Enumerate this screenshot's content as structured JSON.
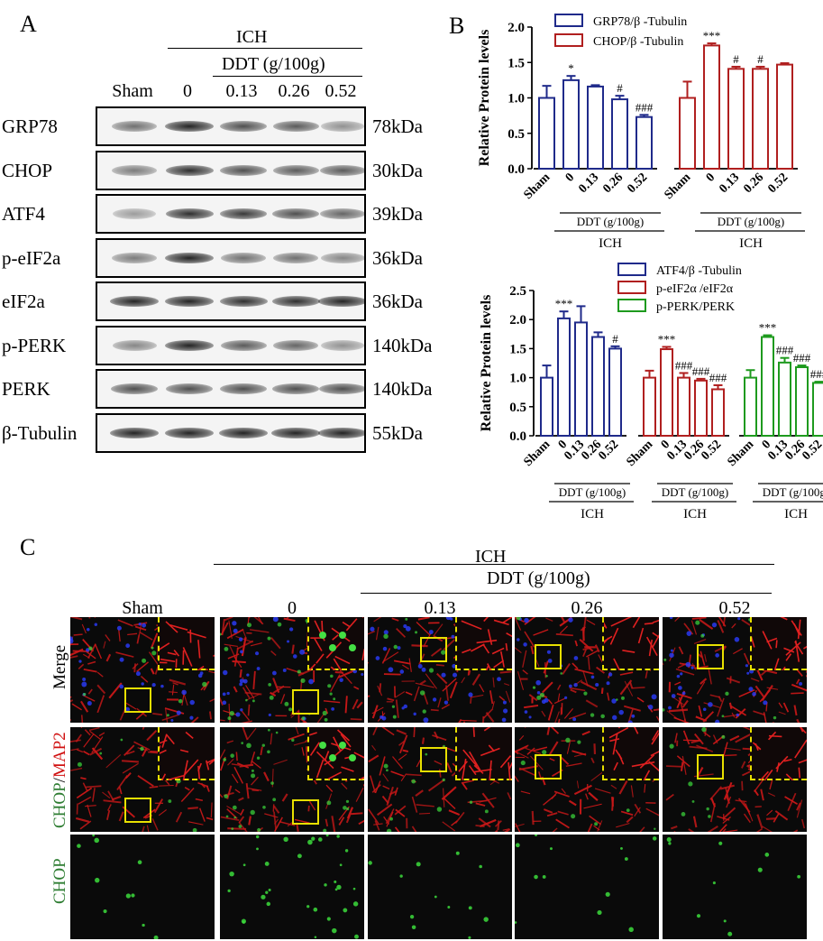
{
  "panels": {
    "a": "A",
    "b": "B",
    "c": "C"
  },
  "blot": {
    "group_label": "ICH",
    "treatment_label": "DDT (g/100g)",
    "lanes": [
      "Sham",
      "0",
      "0.13",
      "0.26",
      "0.52"
    ],
    "rows": [
      {
        "protein": "GRP78",
        "mw": "78kDa",
        "intensities": [
          0.6,
          0.95,
          0.75,
          0.7,
          0.45
        ]
      },
      {
        "protein": "CHOP",
        "mw": "30kDa",
        "intensities": [
          0.55,
          0.9,
          0.75,
          0.7,
          0.7
        ]
      },
      {
        "protein": "ATF4",
        "mw": "39kDa",
        "intensities": [
          0.4,
          0.9,
          0.85,
          0.75,
          0.65
        ]
      },
      {
        "protein": "p-eIF2a",
        "mw": "36kDa",
        "intensities": [
          0.55,
          0.95,
          0.6,
          0.6,
          0.5
        ]
      },
      {
        "protein": "eIF2a",
        "mw": "36kDa",
        "intensities": [
          0.95,
          0.95,
          0.9,
          0.9,
          0.95
        ]
      },
      {
        "protein": "p-PERK",
        "mw": "140kDa",
        "intensities": [
          0.5,
          0.95,
          0.7,
          0.65,
          0.45
        ]
      },
      {
        "protein": "PERK",
        "mw": "140kDa",
        "intensities": [
          0.75,
          0.75,
          0.75,
          0.75,
          0.75
        ]
      },
      {
        "protein": "β-Tubulin",
        "mw": "55kDa",
        "intensities": [
          0.95,
          0.95,
          0.95,
          0.95,
          0.95
        ]
      }
    ]
  },
  "chart_data": [
    {
      "type": "bar",
      "ylabel": "Relative  Protein levels",
      "ylim": [
        0,
        2.0
      ],
      "yticks": [
        "0.0",
        "0.5",
        "1.0",
        "1.5",
        "2.0"
      ],
      "categories": [
        "Sham",
        "0",
        "0.13",
        "0.26",
        "0.52"
      ],
      "group_treatment_label": "DDT (g/100g)",
      "group_label": "ICH",
      "legend_position": "top-left",
      "series": [
        {
          "name": "GRP78/β -Tubulin",
          "color": "#1f2a8a",
          "values": [
            1.0,
            1.25,
            1.16,
            0.98,
            0.73
          ],
          "errors": [
            0.17,
            0.06,
            0.02,
            0.05,
            0.03
          ],
          "sig": [
            "",
            "*",
            "",
            "#",
            "###"
          ]
        },
        {
          "name": "CHOP/β -Tubulin",
          "color": "#b01f1f",
          "values": [
            1.0,
            1.74,
            1.41,
            1.41,
            1.47
          ],
          "errors": [
            0.23,
            0.03,
            0.03,
            0.03,
            0.02
          ],
          "sig": [
            "",
            "***",
            "#",
            "#",
            ""
          ]
        }
      ]
    },
    {
      "type": "bar",
      "ylabel": "Relative  Protein levels",
      "ylim": [
        0,
        2.5
      ],
      "yticks": [
        "0.0",
        "0.5",
        "1.0",
        "1.5",
        "2.0",
        "2.5"
      ],
      "categories": [
        "Sham",
        "0",
        "0.13",
        "0.26",
        "0.52"
      ],
      "group_treatment_label": "DDT (g/100g)",
      "group_label": "ICH",
      "legend_position": "top-right",
      "series": [
        {
          "name": "ATF4/β -Tubulin",
          "color": "#1f2a8a",
          "values": [
            1.0,
            2.02,
            1.95,
            1.7,
            1.5
          ],
          "errors": [
            0.21,
            0.12,
            0.28,
            0.08,
            0.04
          ],
          "sig": [
            "",
            "***",
            "",
            "",
            "#"
          ]
        },
        {
          "name": "p-eIF2α /eIF2α",
          "color": "#b01f1f",
          "values": [
            1.0,
            1.49,
            1.0,
            0.95,
            0.8
          ],
          "errors": [
            0.12,
            0.04,
            0.08,
            0.03,
            0.07
          ],
          "sig": [
            "",
            "***",
            "###",
            "###",
            "###"
          ]
        },
        {
          "name": "p-PERK/PERK",
          "color": "#1e9a1e",
          "values": [
            1.0,
            1.7,
            1.26,
            1.18,
            0.91
          ],
          "errors": [
            0.13,
            0.03,
            0.08,
            0.03,
            0.02
          ],
          "sig": [
            "",
            "***",
            "###",
            "###",
            "###"
          ]
        }
      ]
    }
  ],
  "micro": {
    "group_label": "ICH",
    "treatment_label": "DDT (g/100g)",
    "columns": [
      "Sham",
      "0",
      "0.13",
      "0.26",
      "0.52"
    ],
    "rows": {
      "merge": "Merge",
      "chop_part": "CHOP",
      "slash": "/",
      "map2_part": "MAP2",
      "chop": "CHOP"
    },
    "colors": {
      "chop_green": "#2e7d32",
      "map2_red": "#d01010"
    }
  }
}
